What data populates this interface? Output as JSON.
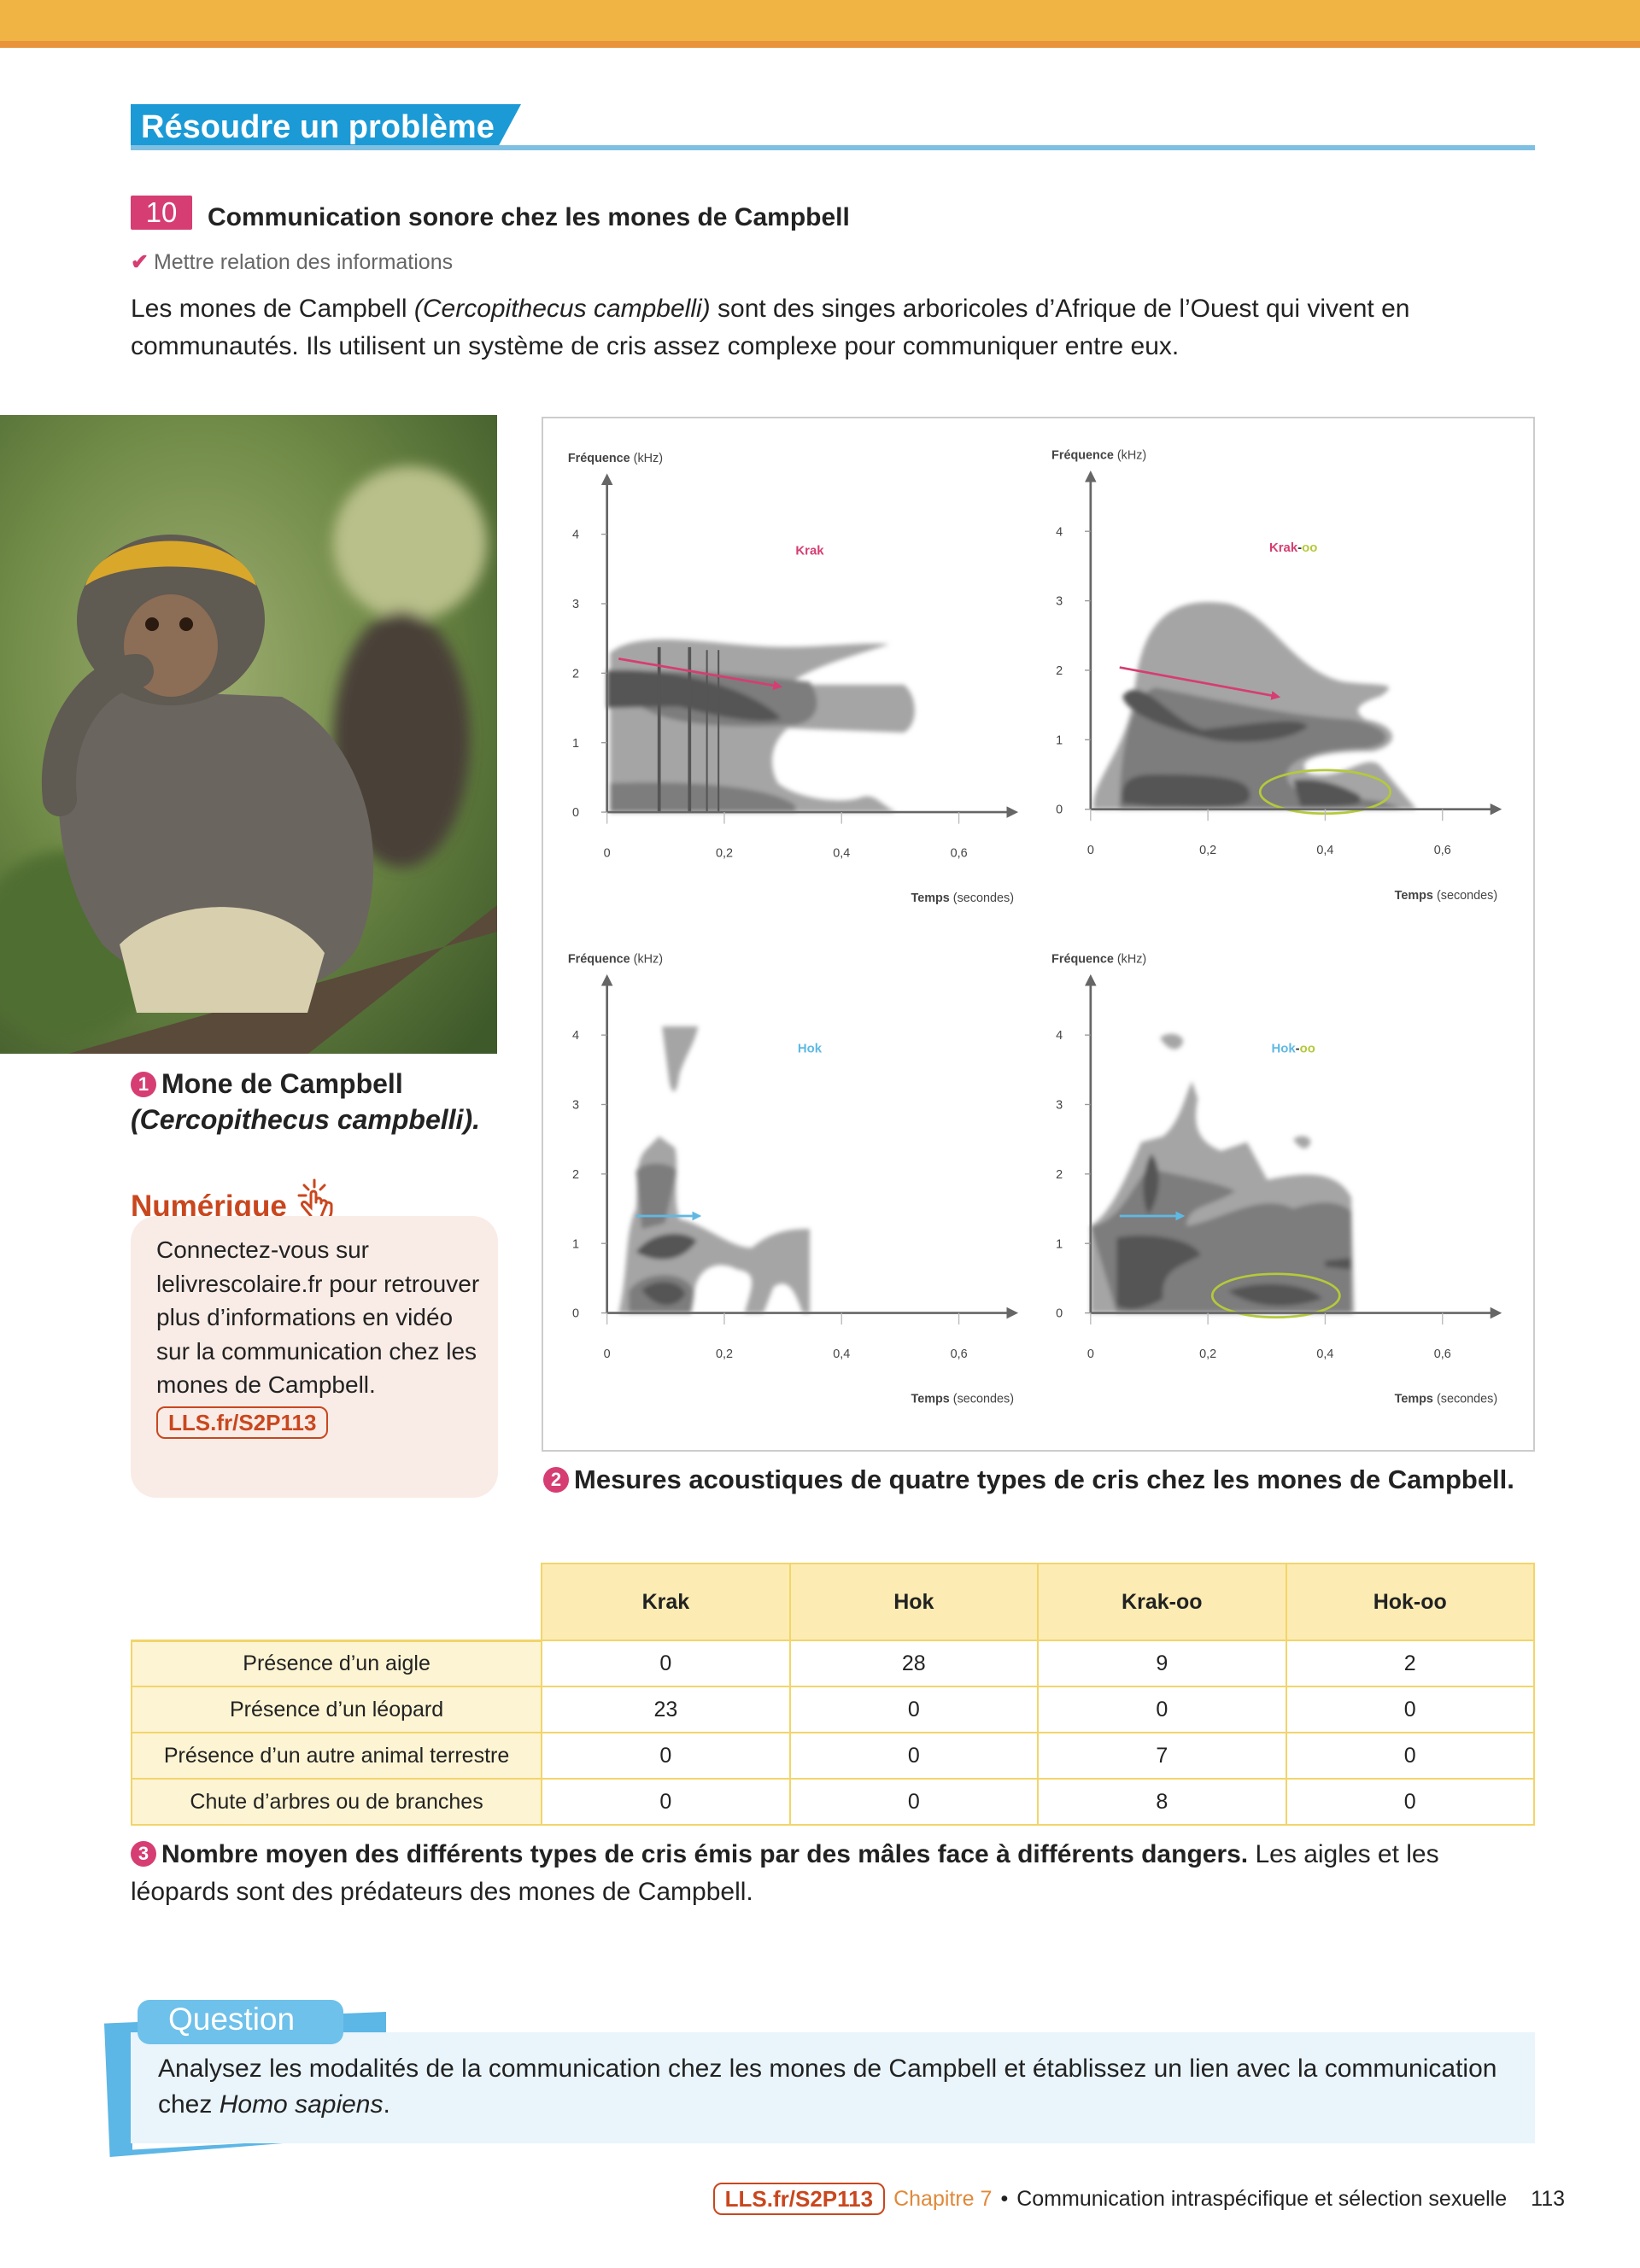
{
  "section": {
    "title": "Résoudre un problème"
  },
  "exercise": {
    "number": "10",
    "title": "Communication sonore chez les mones de Campbell",
    "skill": "Mettre relation des informations",
    "intro_before": "Les mones de Campbell ",
    "intro_italic": "(Cercopithecus campbelli)",
    "intro_after": " sont des singes arboricoles d’Afrique de l’Ouest qui vivent en communautés. Ils utilisent un système de cris assez complexe pour communiquer entre eux."
  },
  "doc1": {
    "number": "1",
    "caption": "Mone de Campbell",
    "caption_italic": "(Cercopithecus campbelli)."
  },
  "numerique": {
    "title": "Numérique",
    "icon": "hand-pointer-click-icon",
    "text": "Connectez-vous sur lelivrescolaire.fr pour retrouver plus d’informations en vidéo sur la communication chez les mones de Campbell.",
    "link": "LLS.fr/S2P113"
  },
  "doc2": {
    "number": "2",
    "caption": "Mesures acoustiques de quatre types de cris chez les mones de Campbell.",
    "colors": {
      "krak": "#d63d72",
      "hok": "#5fb9e4",
      "oo": "#b5c93a"
    },
    "panels": [
      {
        "label": "Krak",
        "label_suffix": ""
      },
      {
        "label": "Krak",
        "label_suffix": "oo"
      },
      {
        "label": "Hok",
        "label_suffix": ""
      },
      {
        "label": "Hok",
        "label_suffix": "oo"
      }
    ],
    "y_axis": {
      "label_bold": "Fréquence",
      "label_unit": " (kHz)",
      "ticks": [
        "0",
        "1",
        "2",
        "3",
        "4"
      ]
    },
    "x_axis": {
      "label_bold": "Temps",
      "label_unit": " (secondes)",
      "ticks": [
        "0",
        "0,2",
        "0,4",
        "0,6"
      ]
    }
  },
  "doc3": {
    "number": "3",
    "columns": [
      "Krak",
      "Hok",
      "Krak-oo",
      "Hok-oo"
    ],
    "rows": [
      {
        "label": "Présence d’un aigle",
        "values": [
          "0",
          "28",
          "9",
          "2"
        ]
      },
      {
        "label": "Présence d’un léopard",
        "values": [
          "23",
          "0",
          "0",
          "0"
        ]
      },
      {
        "label": "Présence d’un autre animal terrestre",
        "values": [
          "0",
          "0",
          "7",
          "0"
        ]
      },
      {
        "label": "Chute d’arbres ou de branches",
        "values": [
          "0",
          "0",
          "8",
          "0"
        ]
      }
    ],
    "caption_bold": "Nombre moyen des différents types de cris émis par des mâles face à différents dangers.",
    "caption": " Les aigles et les léopards sont des prédateurs des mones de Campbell."
  },
  "question": {
    "tab": "Question",
    "text_before": "Analysez les modalités de la communication chez les mones de Campbell et établissez un lien avec la communication chez ",
    "text_italic": "Homo sapiens",
    "text_after": "."
  },
  "footer": {
    "link": "LLS.fr/S2P113",
    "chapter": "Chapitre 7",
    "separator": "•",
    "chapter_title": "Communication intraspécifique et sélection sexuelle",
    "page": "113"
  }
}
